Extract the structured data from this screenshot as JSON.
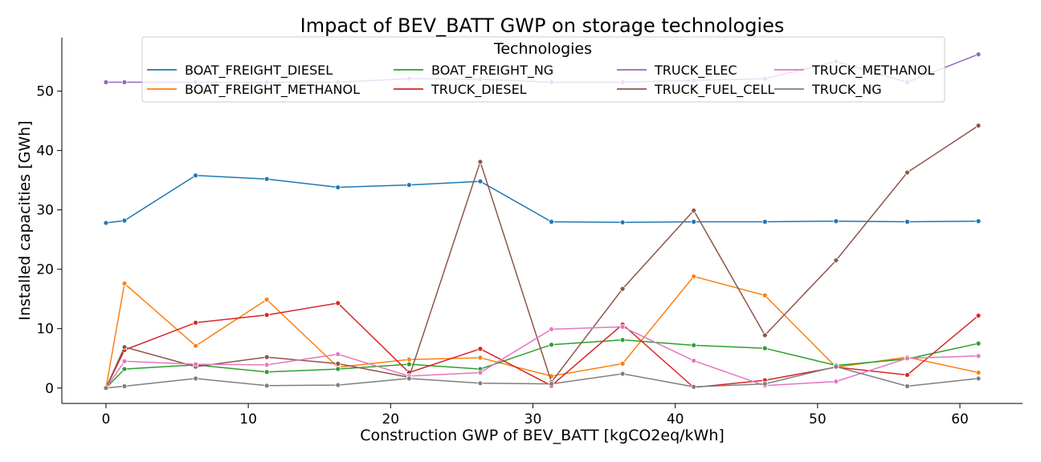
{
  "chart_data": {
    "type": "line",
    "title": "Impact of BEV_BATT GWP on storage technologies",
    "xlabel": "Construction GWP of BEV_BATT [kgCO2eq/kWh]",
    "ylabel": "Installed capacities [GWh]",
    "xlim": [
      -3.1,
      64.4
    ],
    "ylim": [
      -2.6,
      59.0
    ],
    "xticks": [
      0,
      10,
      20,
      30,
      40,
      50,
      60
    ],
    "yticks": [
      0,
      10,
      20,
      30,
      40,
      50
    ],
    "grid": false,
    "legend": {
      "title": "Technologies",
      "placement": "top-center",
      "columns": 4
    },
    "x": [
      0,
      1.3,
      6.3,
      11.3,
      16.3,
      21.3,
      26.3,
      31.3,
      36.3,
      41.3,
      46.3,
      51.3,
      56.3,
      61.3
    ],
    "series": [
      {
        "name": "BOAT_FREIGHT_DIESEL",
        "color": "#1f77b4",
        "values": [
          27.8,
          28.2,
          35.8,
          35.2,
          33.8,
          34.2,
          34.8,
          28.0,
          27.9,
          28.0,
          28.0,
          28.1,
          28.0,
          28.1
        ]
      },
      {
        "name": "BOAT_FREIGHT_METHANOL",
        "color": "#ff7f0e",
        "values": [
          0.0,
          17.6,
          7.1,
          14.9,
          3.5,
          4.8,
          5.1,
          2.0,
          4.1,
          18.8,
          15.6,
          3.5,
          5.2,
          2.6
        ]
      },
      {
        "name": "BOAT_FREIGHT_NG",
        "color": "#2ca02c",
        "values": [
          0.0,
          3.2,
          3.9,
          2.7,
          3.2,
          4.0,
          3.2,
          7.3,
          8.1,
          7.2,
          6.7,
          3.8,
          4.9,
          7.5
        ]
      },
      {
        "name": "TRUCK_DIESEL",
        "color": "#d62728",
        "values": [
          0.0,
          6.4,
          11.0,
          12.3,
          14.3,
          2.6,
          6.6,
          0.4,
          10.7,
          0.1,
          1.3,
          3.5,
          2.2,
          12.2
        ]
      },
      {
        "name": "TRUCK_ELEC",
        "color": "#9467bd",
        "values": [
          51.5,
          51.5,
          51.5,
          51.5,
          51.5,
          52.1,
          52.0,
          51.5,
          51.5,
          51.8,
          52.1,
          55.0,
          51.5,
          56.2
        ]
      },
      {
        "name": "TRUCK_FUEL_CELL",
        "color": "#8c564b",
        "values": [
          0.0,
          6.9,
          3.6,
          5.2,
          4.1,
          1.8,
          38.1,
          1.0,
          16.7,
          29.9,
          8.9,
          21.5,
          36.3,
          44.2
        ]
      },
      {
        "name": "TRUCK_METHANOL",
        "color": "#e377c2",
        "values": [
          0.0,
          4.5,
          4.0,
          3.9,
          5.7,
          2.0,
          2.6,
          9.9,
          10.3,
          4.6,
          0.4,
          1.1,
          5.0,
          5.4
        ]
      },
      {
        "name": "TRUCK_NG",
        "color": "#7f7f7f",
        "values": [
          0.0,
          0.3,
          1.6,
          0.4,
          0.5,
          1.6,
          0.8,
          0.7,
          2.4,
          0.2,
          0.7,
          3.6,
          0.3,
          1.6
        ]
      }
    ]
  }
}
